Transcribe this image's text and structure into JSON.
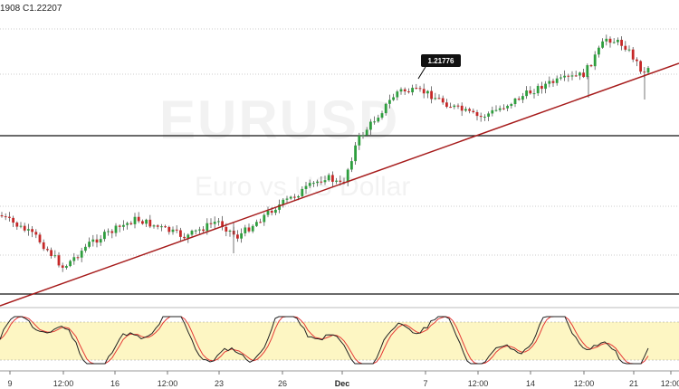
{
  "header": {
    "ohlc_text": "1908  C1.22207"
  },
  "watermark": {
    "symbol": "EURUSD",
    "name": "Euro vs US Dollar"
  },
  "callout": {
    "label": "1.21776"
  },
  "colors": {
    "bull": "#2e9e3e",
    "bear": "#c62828",
    "trend": "#a61b1b",
    "stoch_k": "#222222",
    "stoch_d": "#e53935",
    "stoch_band": "#fdf6c3"
  },
  "x_axis": {
    "labels": [
      "9",
      "12:00",
      "16",
      "12:00",
      "23",
      "26",
      "Dec",
      "7",
      "12:00",
      "14",
      "12:00",
      "21",
      "12:00"
    ]
  },
  "chart_data": {
    "type": "candlestick",
    "title": "",
    "last_close": 1.22207,
    "callout_price": 1.21776,
    "horizontal_lines": [
      "solid",
      "dotted",
      "dotted",
      "dotted",
      "solid",
      "dotted"
    ],
    "trendline": "rising",
    "stochastic": {
      "upper_band": 80,
      "lower_band": 20
    }
  }
}
